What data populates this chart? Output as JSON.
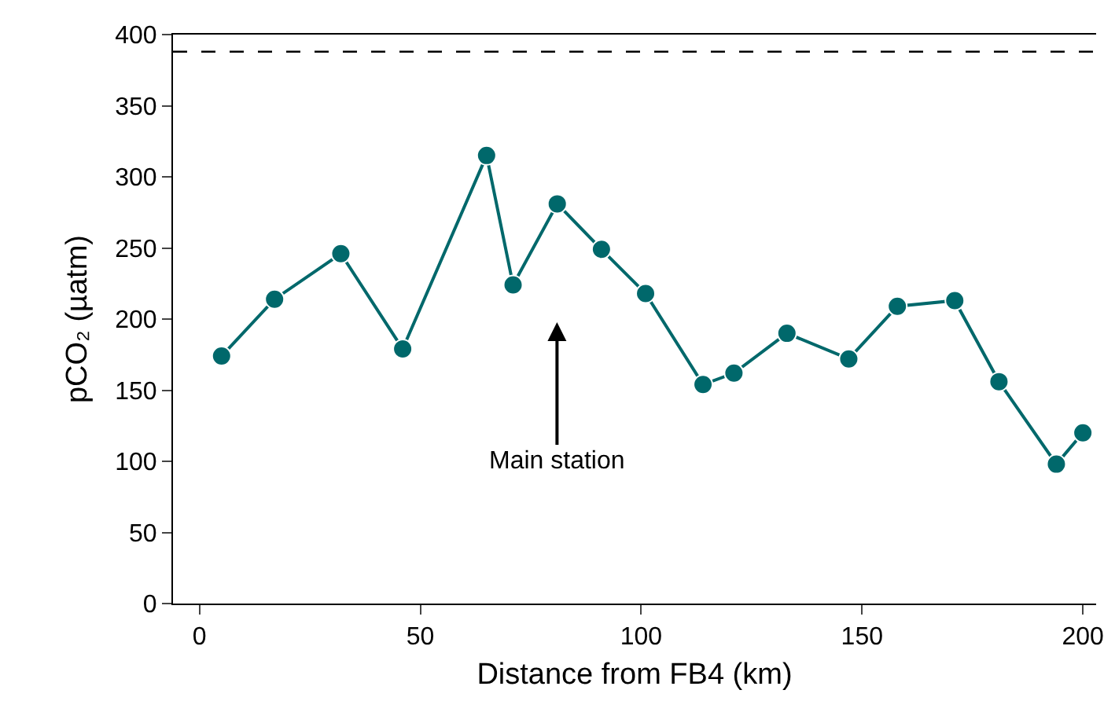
{
  "chart_data": {
    "type": "line",
    "xlabel": "Distance from FB4 (km)",
    "ylabel": "pCO₂ (µatm)",
    "x": [
      5,
      17,
      32,
      46,
      65,
      71,
      81,
      91,
      101,
      114,
      121,
      133,
      147,
      158,
      171,
      181,
      194,
      200
    ],
    "series": [
      {
        "color": "#00686b",
        "values": [
          174,
          214,
          246,
          179,
          315,
          224,
          281,
          249,
          218,
          154,
          162,
          190,
          172,
          209,
          213,
          156,
          98,
          120
        ]
      }
    ],
    "xlim": [
      -6,
      203
    ],
    "xticks": [
      0,
      50,
      100,
      150,
      200
    ],
    "ylim": [
      0,
      400
    ],
    "yticks": [
      0,
      50,
      100,
      150,
      200,
      250,
      300,
      350,
      400
    ],
    "ref_lines": [
      {
        "axis": "y",
        "value": 388,
        "color": "#000000",
        "line_style": "dashed"
      }
    ],
    "annotations": [
      "Main station"
    ],
    "marker": "circle",
    "line_style": "solid"
  }
}
